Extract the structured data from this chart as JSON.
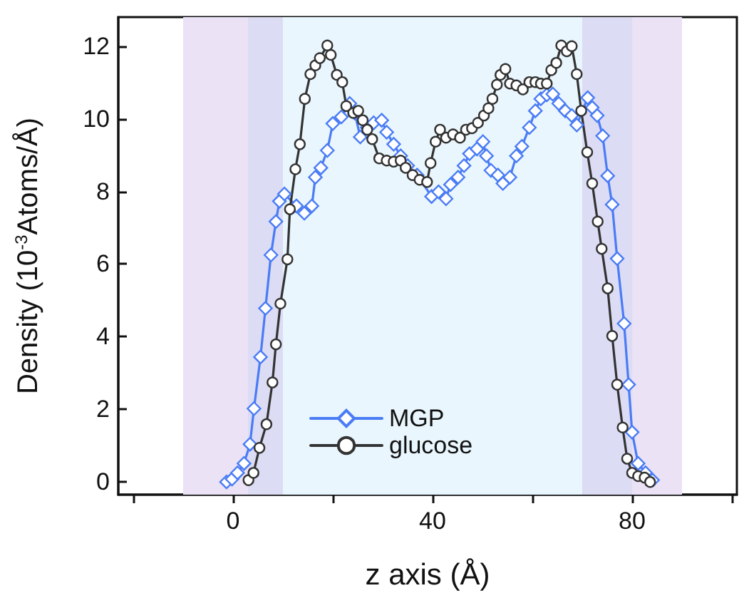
{
  "chart_data": {
    "type": "line",
    "xlabel": "z axis (Å)",
    "ylabel": "Density (10$^{-3}$Atoms/Å)",
    "xlim": [
      -23,
      101
    ],
    "xticks": [
      {
        "value": -20,
        "label": null
      },
      0,
      {
        "value": 20,
        "label": null
      },
      40,
      {
        "value": 60,
        "label": null
      },
      80,
      {
        "value": 100,
        "label": null
      }
    ],
    "ylim": [
      -0.35,
      12.8
    ],
    "yticks": [
      0,
      2,
      4,
      6,
      8,
      10,
      12
    ],
    "grid": false,
    "legend": "bottom",
    "line_style": "solid",
    "bands": [
      {
        "axis": "x",
        "from": -10,
        "to": 3,
        "color": "#ebe2f6"
      },
      {
        "axis": "x",
        "from": 3,
        "to": 10,
        "color": "#dcdcf5"
      },
      {
        "axis": "x",
        "from": 10,
        "to": 70,
        "color": "#e9f6fd"
      },
      {
        "axis": "x",
        "from": 70,
        "to": 80,
        "color": "#dcdcf5"
      },
      {
        "axis": "x",
        "from": 80,
        "to": 90,
        "color": "#ebe2f6"
      }
    ],
    "series": [
      {
        "name": "MGP",
        "color": "#4a7cf5",
        "marker": "diamond",
        "x": [
          -1.3,
          -0.2,
          0.9,
          2.2,
          3.4,
          4.2,
          5.5,
          6.5,
          7.6,
          8.6,
          9.3,
          10.3,
          12.7,
          14.3,
          15.8,
          16.5,
          17.6,
          18.9,
          20,
          21.7,
          23.4,
          24.4,
          25.5,
          26.9,
          28.2,
          29.8,
          30.8,
          32.2,
          33.6,
          35,
          36.9,
          39.8,
          41.2,
          42.7,
          43.6,
          45.1,
          46.3,
          47.4,
          48.9,
          50.1,
          50.8,
          51.7,
          53.1,
          54.1,
          55.5,
          56.8,
          57.9,
          59.4,
          60.6,
          61.7,
          62.9,
          64.1,
          65.3,
          66.6,
          67.9,
          68.9,
          71.1,
          72,
          73,
          74.1,
          75.1,
          76,
          77,
          78.4,
          79.3,
          80,
          81.2,
          82.7,
          84.1
        ],
        "values": [
          0,
          0.08,
          0.25,
          0.51,
          1.04,
          2.02,
          3.44,
          4.78,
          6.25,
          7.17,
          7.73,
          7.93,
          7.6,
          7.4,
          7.6,
          8.39,
          8.65,
          9.13,
          9.87,
          10.05,
          10.42,
          10.16,
          9.5,
          9.76,
          9.89,
          9.96,
          9.63,
          9.3,
          8.98,
          8.71,
          8.45,
          7.86,
          7.99,
          7.8,
          8.19,
          8.39,
          8.71,
          9.04,
          9.17,
          9.37,
          8.98,
          8.58,
          8.45,
          8.22,
          8.39,
          8.98,
          9.24,
          9.76,
          10.22,
          10.55,
          10.66,
          10.68,
          10.42,
          10.22,
          10.09,
          9.83,
          10.58,
          10.31,
          10.09,
          9.53,
          8.43,
          7.64,
          6.15,
          4.36,
          2.68,
          1.37,
          0.51,
          0.25,
          0.05
        ]
      },
      {
        "name": "glucose",
        "color": "#333333",
        "marker": "circle",
        "x": [
          3.1,
          4.1,
          5.3,
          6.7,
          7.9,
          8.6,
          9.5,
          10.9,
          11.4,
          12.5,
          13.4,
          14.4,
          15.5,
          16.5,
          17.4,
          18.9,
          19.6,
          20.8,
          21.9,
          22.7,
          24.1,
          25.1,
          26,
          26.9,
          27.9,
          29.3,
          30.8,
          32.2,
          33.6,
          34.6,
          36,
          37.4,
          38.9,
          39.6,
          40.6,
          41.5,
          42.7,
          44.1,
          45.5,
          46.7,
          47.9,
          49.1,
          50.3,
          51.2,
          52,
          52.9,
          53.6,
          54.6,
          55.5,
          56.8,
          58.1,
          59.4,
          60.6,
          61.7,
          62.9,
          63.8,
          64.8,
          65.8,
          66.9,
          67.9,
          68.9,
          69.8,
          71,
          72,
          73.1,
          73.9,
          75.1,
          76,
          77,
          78.1,
          79,
          80,
          81.2,
          82.5,
          83.6
        ],
        "values": [
          0.05,
          0.25,
          0.94,
          1.59,
          2.74,
          3.79,
          4.91,
          6.13,
          7.51,
          8.61,
          9.3,
          10.55,
          11.23,
          11.47,
          11.67,
          12.02,
          11.76,
          11.21,
          11.01,
          10.35,
          10.16,
          10.22,
          9.96,
          9.7,
          9.44,
          8.91,
          8.85,
          8.82,
          8.85,
          8.65,
          8.45,
          8.32,
          8.26,
          8.78,
          9.37,
          9.7,
          9.48,
          9.57,
          9.48,
          9.7,
          9.74,
          9.89,
          10.09,
          10.29,
          10.55,
          10.94,
          11.21,
          11.37,
          10.97,
          10.92,
          10.81,
          11.01,
          11.01,
          10.97,
          10.97,
          11.34,
          11.54,
          12.02,
          11.86,
          12,
          11.23,
          10.22,
          9.08,
          8.22,
          7.17,
          6.42,
          5.33,
          4.02,
          2.68,
          1.5,
          0.64,
          0.25,
          0.16,
          0.12,
          0
        ]
      }
    ]
  }
}
